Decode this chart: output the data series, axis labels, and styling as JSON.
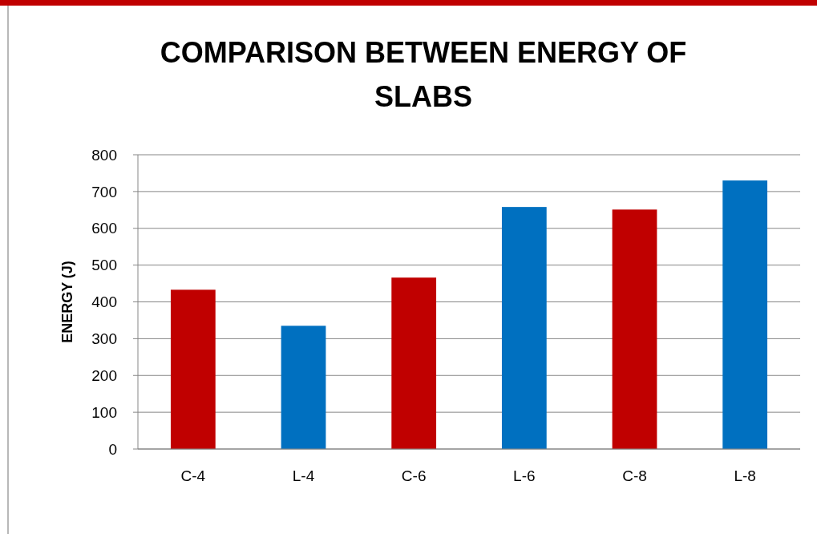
{
  "chart_data": {
    "type": "bar",
    "title": "COMPARISON BETWEEN ENERGY OF SLABS",
    "ylabel": "ENERGY (J)",
    "categories": [
      "C-4",
      "L-4",
      "C-6",
      "L-6",
      "C-8",
      "L-8"
    ],
    "values": [
      433,
      335,
      466,
      658,
      651,
      730
    ],
    "colors": [
      "#c00000",
      "#0070c0",
      "#c00000",
      "#0070c0",
      "#c00000",
      "#0070c0"
    ],
    "ylim": [
      0,
      800
    ],
    "yticks": [
      0,
      100,
      200,
      300,
      400,
      500,
      600,
      700,
      800
    ],
    "grid": "y"
  }
}
